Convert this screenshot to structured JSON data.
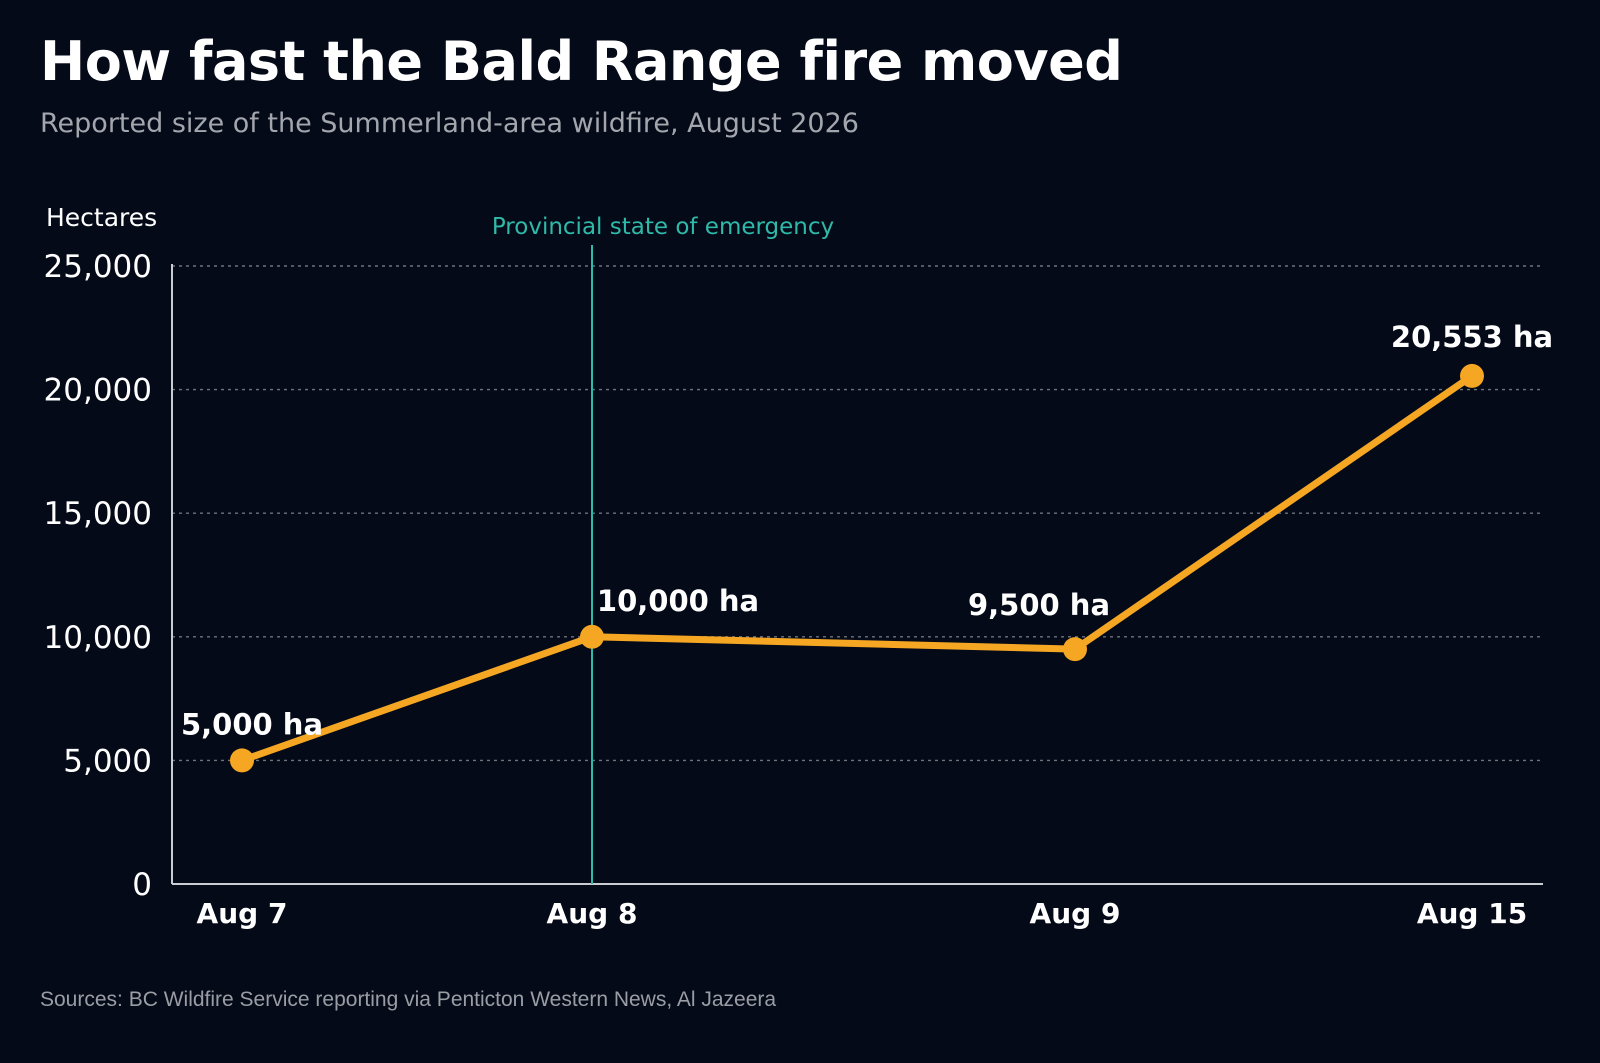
{
  "header": {
    "title": "How fast the Bald Range fire moved",
    "subtitle": "Reported size of the Summerland-area wildfire, August 2026"
  },
  "footer": {
    "sources": "Sources: BC Wildfire Service reporting via Penticton Western News, Al Jazeera"
  },
  "colors": {
    "background": "#050a18",
    "line": "#f5a623",
    "annotation": "#2fb9a8",
    "grid": "#6e737c",
    "axis": "#c9ccd1"
  },
  "chart_data": {
    "type": "line",
    "title": "How fast the Bald Range fire moved",
    "subtitle": "Reported size of the Summerland-area wildfire, August 2026",
    "ylabel": "Hectares",
    "xlabel": "",
    "ylim": [
      0,
      25000
    ],
    "yticks": [
      0,
      5000,
      10000,
      15000,
      20000,
      25000
    ],
    "ytick_labels": [
      "0",
      "5,000",
      "10,000",
      "15,000",
      "20,000",
      "25,000"
    ],
    "grid": true,
    "x": [
      "2026-08-07",
      "2026-08-08",
      "2026-08-09",
      "2026-08-15"
    ],
    "x_labels": [
      "Aug 7",
      "Aug 8",
      "Aug 9",
      "Aug 15"
    ],
    "series": [
      {
        "values": [
          5000,
          10000,
          9500,
          20553
        ],
        "labels": [
          "5,000 ha",
          "10,000 ha",
          "9,500 ha",
          "20,553 ha"
        ]
      }
    ],
    "annotations": [
      {
        "x": "2026-08-08",
        "text": "Provincial state of emergency"
      }
    ]
  }
}
